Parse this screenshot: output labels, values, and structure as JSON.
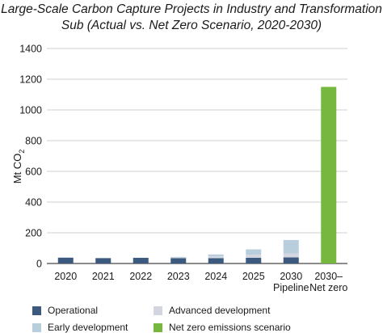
{
  "chart_data": {
    "type": "bar",
    "stacked": true,
    "title": "Large-Scale Carbon Capture Projects in Industry and Transformation Sub (Actual vs. Net Zero Scenario, 2020-2030)",
    "title_lines": [
      "Large-Scale Carbon Capture Projects in Industry and Transformation",
      "Sub (Actual vs. Net Zero Scenario, 2020-2030)"
    ],
    "ylabel": "Mt CO",
    "ylabel_sub": "2",
    "xlabel": "",
    "ylim": [
      0,
      1400
    ],
    "yticks": [
      0,
      200,
      400,
      600,
      800,
      1000,
      1200,
      1400
    ],
    "categories": [
      "2020",
      "2021",
      "2022",
      "2023",
      "2024",
      "2025",
      "2030 Pipeline",
      "2030– Net zero"
    ],
    "category_lines": [
      [
        "2020"
      ],
      [
        "2021"
      ],
      [
        "2022"
      ],
      [
        "2023"
      ],
      [
        "2024"
      ],
      [
        "2025"
      ],
      [
        "2030",
        "Pipeline"
      ],
      [
        "2030–",
        "Net zero"
      ]
    ],
    "grid": true,
    "legend_position": "bottom",
    "series": [
      {
        "name": "Operational",
        "color": "#3c5a80",
        "values": [
          38,
          35,
          37,
          35,
          35,
          37,
          40,
          0
        ]
      },
      {
        "name": "Advanced development",
        "color": "#d3d6e0",
        "values": [
          0,
          0,
          0,
          5,
          12,
          20,
          25,
          0
        ]
      },
      {
        "name": "Early development",
        "color": "#b9cedd",
        "values": [
          0,
          0,
          0,
          3,
          12,
          35,
          88,
          0
        ]
      },
      {
        "name": "Net zero emissions scenario",
        "color": "#76b83f",
        "values": [
          0,
          0,
          0,
          0,
          0,
          0,
          0,
          1150
        ]
      }
    ],
    "legend_order": [
      "Operational",
      "Advanced development",
      "Early development",
      "Net zero emissions scenario"
    ]
  }
}
